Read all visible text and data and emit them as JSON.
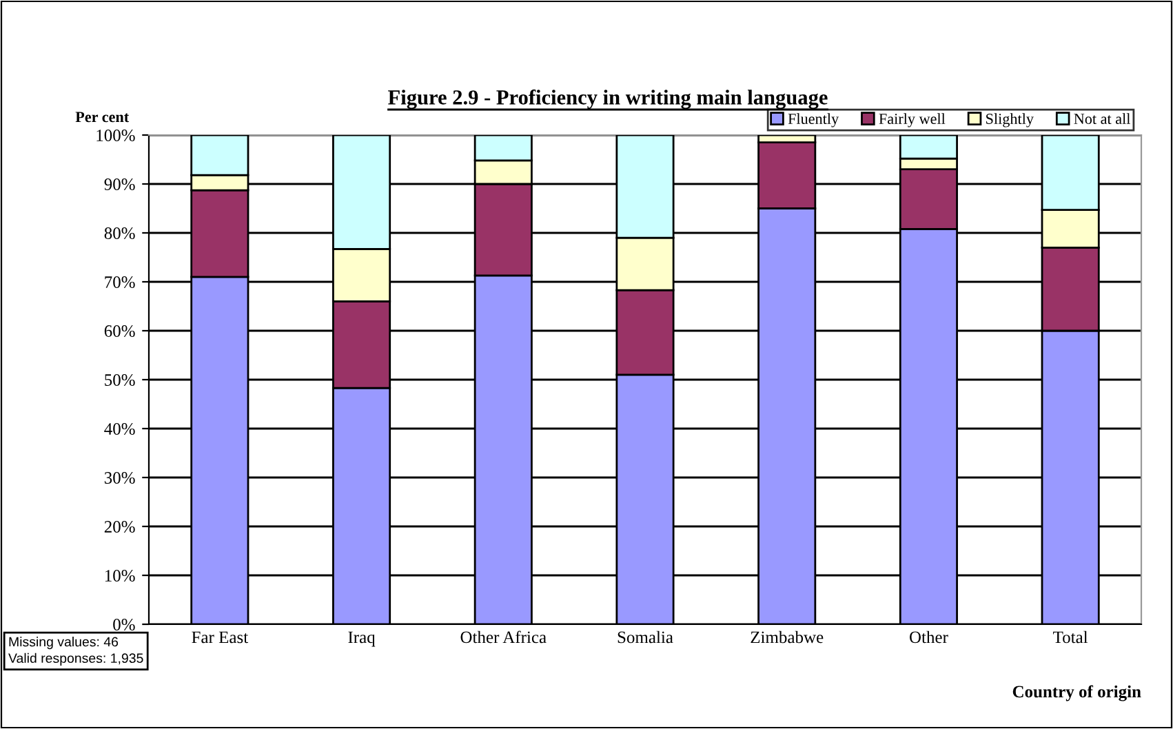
{
  "chart_data": {
    "type": "bar",
    "stacked": true,
    "title": "Figure 2.9 - Proficiency in writing main language",
    "ylabel": "Per cent",
    "xlabel": "Country of origin",
    "categories": [
      "Far East",
      "Iraq",
      "Other Africa",
      "Somalia",
      "Zimbabwe",
      "Other",
      "Total"
    ],
    "series": [
      {
        "name": "Fluently",
        "color": "#9999ff",
        "values": [
          71,
          48.3,
          71.3,
          51,
          85,
          80.8,
          60
        ]
      },
      {
        "name": "Fairly well",
        "color": "#993366",
        "values": [
          17.7,
          17.7,
          18.7,
          17.3,
          13.5,
          12.2,
          17
        ]
      },
      {
        "name": "Slightly",
        "color": "#ffffcc",
        "values": [
          3.1,
          10.7,
          4.8,
          10.7,
          1.5,
          2.2,
          7.7
        ]
      },
      {
        "name": "Not at all",
        "color": "#ccffff",
        "values": [
          8.2,
          23.3,
          5.2,
          21,
          0,
          4.8,
          15.3
        ]
      }
    ],
    "ylim": [
      0,
      100
    ],
    "yticks": [
      {
        "value": 0,
        "label": "0%"
      },
      {
        "value": 10,
        "label": "10%"
      },
      {
        "value": 20,
        "label": "20%"
      },
      {
        "value": 30,
        "label": "30%"
      },
      {
        "value": 40,
        "label": "40%"
      },
      {
        "value": 50,
        "label": "50%"
      },
      {
        "value": 60,
        "label": "60%"
      },
      {
        "value": 70,
        "label": "70%"
      },
      {
        "value": 80,
        "label": "80%"
      },
      {
        "value": 90,
        "label": "90%"
      },
      {
        "value": 100,
        "label": "100%"
      }
    ],
    "grid": "y",
    "legend": "top right",
    "annotations": [
      "Missing values: 46\nValid responses: 1,935"
    ]
  }
}
